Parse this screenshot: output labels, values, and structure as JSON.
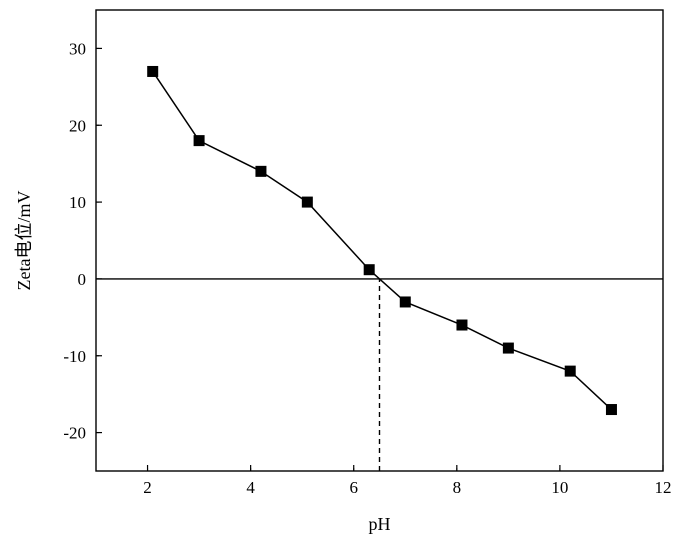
{
  "chart_data": {
    "type": "line",
    "title": "",
    "xlabel": "pH",
    "ylabel": "Zeta电位/mV",
    "xlim": [
      1,
      12
    ],
    "ylim": [
      -25,
      35
    ],
    "xticks": [
      2,
      4,
      6,
      8,
      10,
      12
    ],
    "yticks": [
      -20,
      -10,
      0,
      10,
      20,
      30
    ],
    "grid": false,
    "legend": "none",
    "series": [
      {
        "x": [
          2.1,
          3.0,
          4.2,
          5.1,
          6.3,
          7.0,
          8.1,
          9.0,
          10.2,
          11.0
        ],
        "y": [
          27,
          18,
          14,
          10,
          1.2,
          -3,
          -6,
          -9,
          -12,
          -17
        ],
        "marker": "square",
        "color": "#000000"
      }
    ],
    "reference_lines": [
      {
        "type": "horizontal",
        "y": 0,
        "style": "solid"
      },
      {
        "type": "vertical",
        "x": 6.5,
        "y_from": -25,
        "y_to": 0,
        "style": "dashed"
      }
    ]
  }
}
